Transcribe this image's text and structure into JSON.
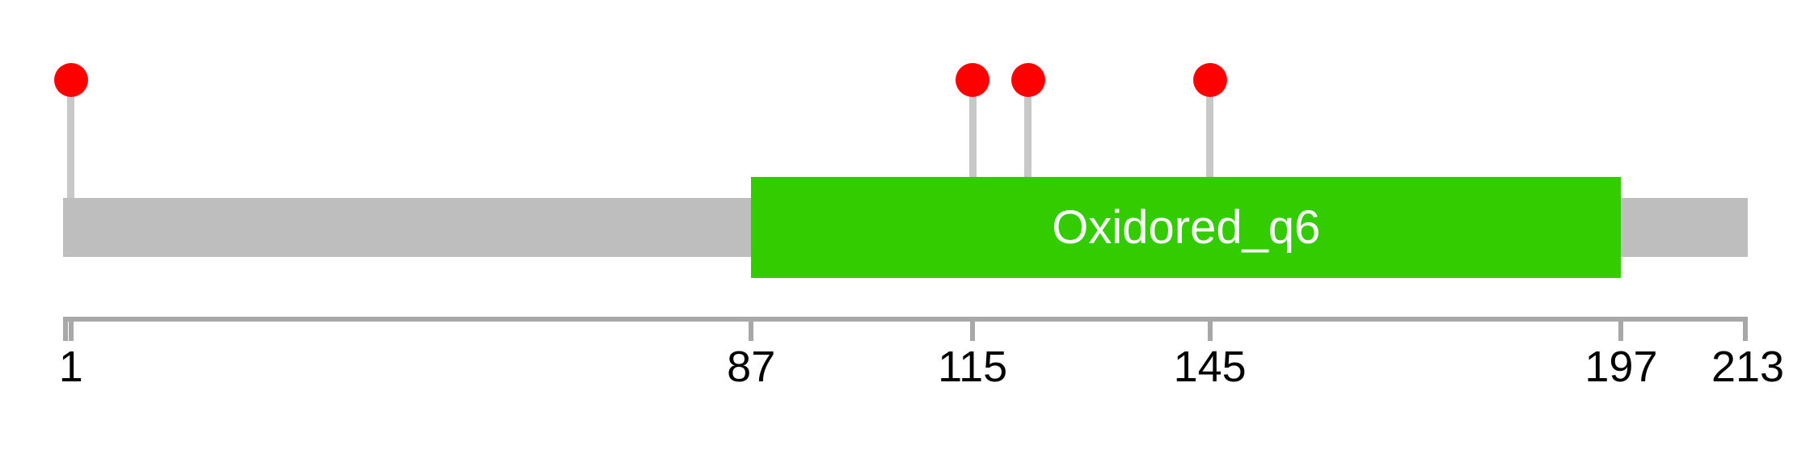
{
  "chart_data": {
    "type": "lollipop",
    "title": "",
    "protein": {
      "axis_min": 0,
      "length": 213,
      "backbone_color": "#BEBEBE"
    },
    "domains": [
      {
        "label": "Oxidored_q6",
        "start": 87,
        "end": 197,
        "color": "#33CC00",
        "label_color": "#FFFFFF"
      }
    ],
    "mutations": {
      "marker_color": "#FF0000",
      "stem_color": "#C8C8C8",
      "positions": [
        1,
        115,
        122,
        145
      ]
    },
    "axis": {
      "line_color": "#A8A8A8",
      "tick_color": "#A8A8A8",
      "label_color": "#000000",
      "ticks": [
        {
          "pos": 1,
          "label": "1"
        },
        {
          "pos": 87,
          "label": "87"
        },
        {
          "pos": 115,
          "label": "115"
        },
        {
          "pos": 145,
          "label": "145"
        },
        {
          "pos": 197,
          "label": "197"
        },
        {
          "pos": 213,
          "label": "213"
        }
      ]
    }
  }
}
